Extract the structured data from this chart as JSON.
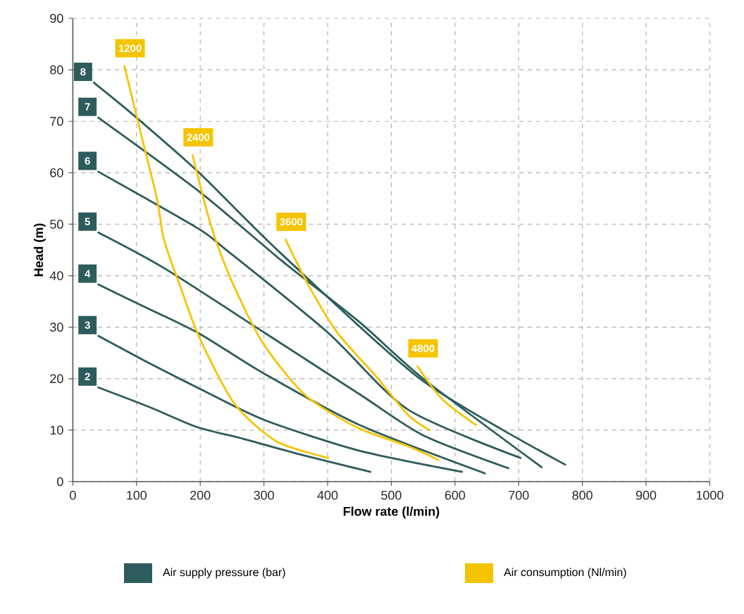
{
  "chart_data": {
    "type": "line",
    "xlabel": "Flow rate (l/min)",
    "ylabel": "Head (m)",
    "xlim": [
      0,
      1000
    ],
    "ylim": [
      0,
      90
    ],
    "xticks": [
      0,
      100,
      200,
      300,
      400,
      500,
      600,
      700,
      800,
      900,
      1000
    ],
    "yticks": [
      0,
      10,
      20,
      30,
      40,
      50,
      60,
      70,
      80,
      90
    ],
    "grid": true,
    "line_style": "solid",
    "annotations": [
      "Air supply pressure (bar)",
      "Air consumption (Nl/min)"
    ],
    "series": [
      {
        "name": "2",
        "color": "#2e5c5c",
        "x": [
          40,
          120,
          195,
          268,
          350,
          467
        ],
        "values": [
          18.3,
          14.5,
          10.6,
          8.3,
          5.5,
          1.9
        ]
      },
      {
        "name": "3",
        "color": "#2e5c5c",
        "x": [
          40,
          120,
          200,
          300,
          450,
          611
        ],
        "values": [
          28.3,
          23,
          18,
          12,
          6,
          1.9
        ]
      },
      {
        "name": "4",
        "color": "#2e5c5c",
        "x": [
          40,
          120,
          198,
          300,
          450,
          647
        ],
        "values": [
          38.3,
          33.5,
          28.8,
          21,
          11,
          1.6
        ]
      },
      {
        "name": "5",
        "color": "#2e5c5c",
        "x": [
          40,
          143,
          300,
          450,
          550,
          684
        ],
        "values": [
          48.4,
          41.5,
          29,
          17,
          9,
          2.6
        ]
      },
      {
        "name": "6",
        "color": "#2e5c5c",
        "x": [
          40,
          195,
          239,
          400,
          526,
          703
        ],
        "values": [
          60.2,
          49.3,
          45.2,
          29,
          14,
          4.6
        ]
      },
      {
        "name": "7",
        "color": "#2e5c5c",
        "x": [
          40,
          200,
          327,
          450,
          550,
          736
        ],
        "values": [
          70.7,
          56.2,
          43,
          31,
          20,
          2.8
        ]
      },
      {
        "name": "8",
        "color": "#2e5c5c",
        "x": [
          33,
          100,
          200,
          327,
          548,
          773
        ],
        "values": [
          77.5,
          70.7,
          59.8,
          44.3,
          19.7,
          3.3
        ]
      },
      {
        "name": "1200",
        "color": "#f5c400",
        "x": [
          81,
          110,
          132,
          143,
          166,
          199,
          254,
          320,
          401
        ],
        "values": [
          80.7,
          66,
          55,
          47,
          38.8,
          27.9,
          15.1,
          7.8,
          4.6
        ]
      },
      {
        "name": "2400",
        "color": "#f5c400",
        "x": [
          188,
          217,
          250,
          298,
          364,
          445,
          526,
          574
        ],
        "values": [
          63.4,
          49.7,
          38.8,
          27,
          16.9,
          10.6,
          6.9,
          4.2
        ]
      },
      {
        "name": "3600",
        "color": "#f5c400",
        "x": [
          334,
          371,
          416,
          475,
          526,
          560
        ],
        "values": [
          47,
          37.9,
          28.8,
          20.6,
          13,
          10
        ]
      },
      {
        "name": "4800",
        "color": "#f5c400",
        "x": [
          541,
          580,
          633
        ],
        "values": [
          22.4,
          16,
          11
        ]
      }
    ]
  }
}
